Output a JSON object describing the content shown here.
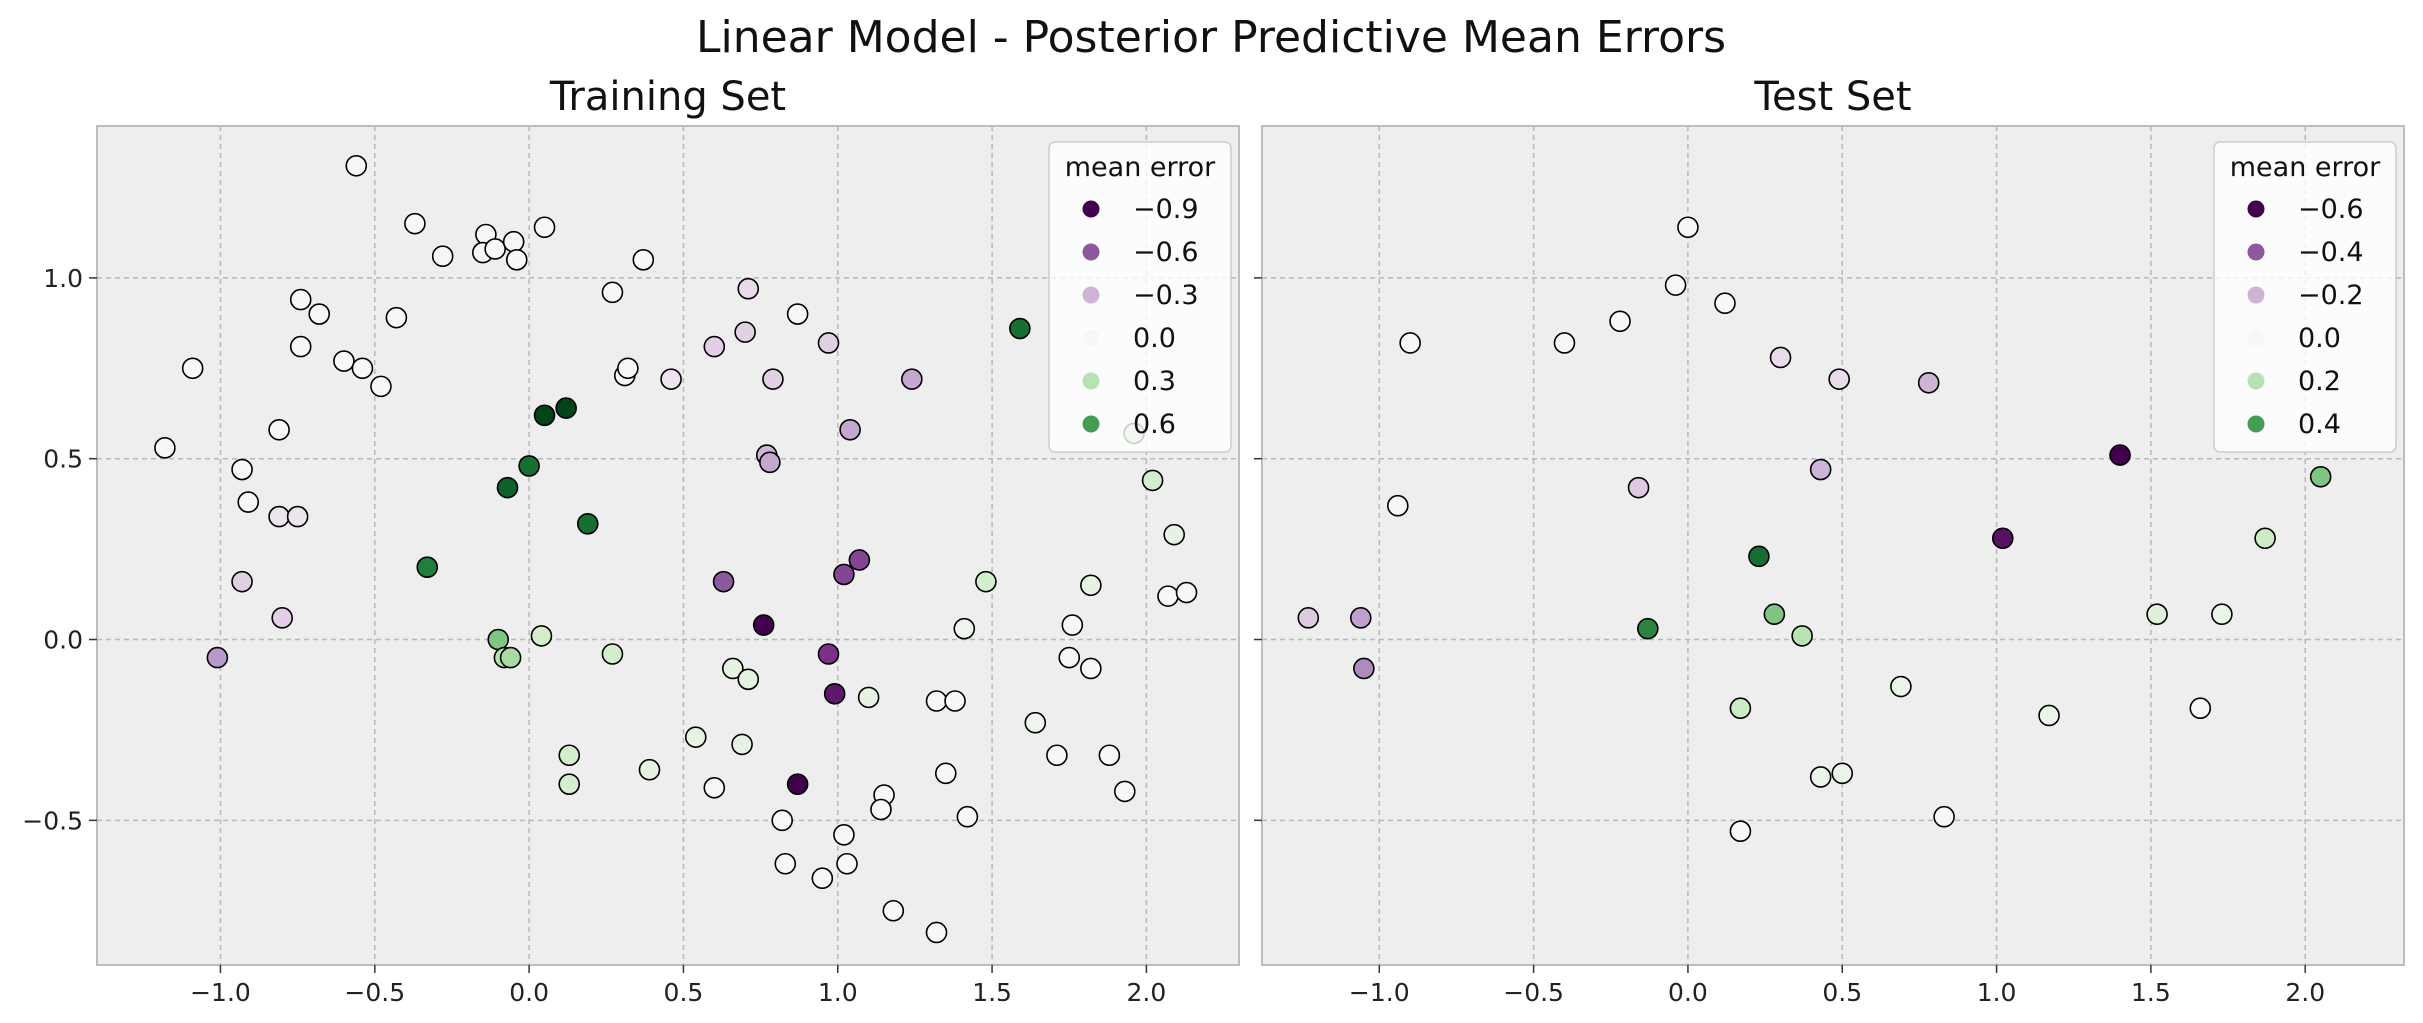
{
  "figure": {
    "title": "Linear Model - Posterior Predictive Mean Errors"
  },
  "colors": {
    "panel_bg": "#eeeeee",
    "grid": "#b8b8b8",
    "spine": "#bdbdbd",
    "marker_edge": "#000000",
    "colormap": "PRGn",
    "cmap_stops": [
      "#40004b",
      "#762a83",
      "#9970ab",
      "#c2a5cf",
      "#e7d4e8",
      "#f7f7f7",
      "#d9f0d3",
      "#a6dba0",
      "#5aae61",
      "#1b7837",
      "#00441b"
    ]
  },
  "chart_data": [
    {
      "type": "scatter",
      "title": "Training Set",
      "xlim": [
        -1.4,
        2.3
      ],
      "ylim": [
        -0.9,
        1.42
      ],
      "xticks": [
        -1.0,
        -0.5,
        0.0,
        0.5,
        1.0,
        1.5,
        2.0
      ],
      "yticks": [
        -0.5,
        0.0,
        0.5,
        1.0
      ],
      "xtick_labels": [
        "−1.0",
        "−0.5",
        "0.0",
        "0.5",
        "1.0",
        "1.5",
        "2.0"
      ],
      "ytick_labels": [
        "−0.5",
        "0.0",
        "0.5",
        "1.0"
      ],
      "grid": true,
      "color_range": [
        -0.9,
        0.9
      ],
      "legend": {
        "title": "mean error",
        "position": "top-right",
        "entries": [
          {
            "label": "−0.9",
            "value": -0.9
          },
          {
            "label": "−0.6",
            "value": -0.6
          },
          {
            "label": "−0.3",
            "value": -0.3
          },
          {
            "label": "0.0",
            "value": 0.0
          },
          {
            "label": "0.3",
            "value": 0.3
          },
          {
            "label": "0.6",
            "value": 0.6
          }
        ]
      },
      "points": [
        {
          "x": -0.56,
          "y": 1.31,
          "e": 0.0
        },
        {
          "x": -0.37,
          "y": 1.15,
          "e": 0.0
        },
        {
          "x": -0.28,
          "y": 1.06,
          "e": 0.0
        },
        {
          "x": -0.14,
          "y": 1.12,
          "e": 0.0
        },
        {
          "x": -0.15,
          "y": 1.07,
          "e": 0.0
        },
        {
          "x": -0.11,
          "y": 1.08,
          "e": 0.0
        },
        {
          "x": -0.05,
          "y": 1.1,
          "e": 0.0
        },
        {
          "x": -0.04,
          "y": 1.05,
          "e": 0.0
        },
        {
          "x": 0.05,
          "y": 1.14,
          "e": 0.0
        },
        {
          "x": 0.37,
          "y": 1.05,
          "e": 0.0
        },
        {
          "x": 0.27,
          "y": 0.96,
          "e": 0.0
        },
        {
          "x": 0.71,
          "y": 0.97,
          "e": -0.15
        },
        {
          "x": 0.87,
          "y": 0.9,
          "e": 0.0
        },
        {
          "x": -0.74,
          "y": 0.94,
          "e": 0.0
        },
        {
          "x": -0.68,
          "y": 0.9,
          "e": 0.0
        },
        {
          "x": -0.43,
          "y": 0.89,
          "e": 0.0
        },
        {
          "x": -1.09,
          "y": 0.75,
          "e": 0.0
        },
        {
          "x": -0.74,
          "y": 0.81,
          "e": 0.0
        },
        {
          "x": -0.6,
          "y": 0.77,
          "e": 0.0
        },
        {
          "x": -0.54,
          "y": 0.75,
          "e": 0.0
        },
        {
          "x": -0.48,
          "y": 0.7,
          "e": 0.0
        },
        {
          "x": 0.31,
          "y": 0.73,
          "e": 0.0
        },
        {
          "x": 0.32,
          "y": 0.75,
          "e": 0.0
        },
        {
          "x": 0.46,
          "y": 0.72,
          "e": -0.1
        },
        {
          "x": 0.6,
          "y": 0.81,
          "e": -0.2
        },
        {
          "x": 0.7,
          "y": 0.85,
          "e": -0.2
        },
        {
          "x": 0.79,
          "y": 0.72,
          "e": -0.2
        },
        {
          "x": 0.97,
          "y": 0.82,
          "e": -0.2
        },
        {
          "x": 1.24,
          "y": 0.72,
          "e": -0.35
        },
        {
          "x": 1.04,
          "y": 0.58,
          "e": -0.35
        },
        {
          "x": 1.59,
          "y": 0.86,
          "e": 0.75
        },
        {
          "x": -1.18,
          "y": 0.53,
          "e": 0.0
        },
        {
          "x": -0.81,
          "y": 0.58,
          "e": 0.0
        },
        {
          "x": -0.93,
          "y": 0.47,
          "e": 0.0
        },
        {
          "x": -0.91,
          "y": 0.38,
          "e": 0.0
        },
        {
          "x": -0.81,
          "y": 0.34,
          "e": -0.1
        },
        {
          "x": -0.75,
          "y": 0.34,
          "e": -0.1
        },
        {
          "x": 0.05,
          "y": 0.62,
          "e": 0.9
        },
        {
          "x": 0.12,
          "y": 0.64,
          "e": 0.9
        },
        {
          "x": 0.0,
          "y": 0.48,
          "e": 0.75
        },
        {
          "x": -0.07,
          "y": 0.42,
          "e": 0.8
        },
        {
          "x": 0.19,
          "y": 0.32,
          "e": 0.75
        },
        {
          "x": -0.33,
          "y": 0.2,
          "e": 0.7
        },
        {
          "x": 0.77,
          "y": 0.51,
          "e": -0.3
        },
        {
          "x": 0.78,
          "y": 0.49,
          "e": -0.35
        },
        {
          "x": 1.96,
          "y": 0.57,
          "e": 0.3
        },
        {
          "x": 2.02,
          "y": 0.44,
          "e": 0.2
        },
        {
          "x": 2.09,
          "y": 0.29,
          "e": 0.1
        },
        {
          "x": -0.93,
          "y": 0.16,
          "e": -0.2
        },
        {
          "x": -0.8,
          "y": 0.06,
          "e": -0.2
        },
        {
          "x": -1.01,
          "y": -0.05,
          "e": -0.4
        },
        {
          "x": 0.63,
          "y": 0.16,
          "e": -0.6
        },
        {
          "x": 1.07,
          "y": 0.22,
          "e": -0.65
        },
        {
          "x": 1.02,
          "y": 0.18,
          "e": -0.65
        },
        {
          "x": 0.76,
          "y": 0.04,
          "e": -0.9
        },
        {
          "x": 0.97,
          "y": -0.04,
          "e": -0.7
        },
        {
          "x": 0.99,
          "y": -0.15,
          "e": -0.8
        },
        {
          "x": 0.87,
          "y": -0.4,
          "e": -0.9
        },
        {
          "x": -0.1,
          "y": 0.0,
          "e": 0.45
        },
        {
          "x": -0.08,
          "y": -0.05,
          "e": 0.3
        },
        {
          "x": -0.06,
          "y": -0.05,
          "e": 0.35
        },
        {
          "x": 0.04,
          "y": 0.01,
          "e": 0.2
        },
        {
          "x": 0.27,
          "y": -0.04,
          "e": 0.2
        },
        {
          "x": 0.13,
          "y": -0.32,
          "e": 0.2
        },
        {
          "x": 0.13,
          "y": -0.4,
          "e": 0.2
        },
        {
          "x": 0.39,
          "y": -0.36,
          "e": 0.1
        },
        {
          "x": 0.54,
          "y": -0.27,
          "e": 0.1
        },
        {
          "x": 0.6,
          "y": -0.41,
          "e": 0.0
        },
        {
          "x": 0.66,
          "y": -0.08,
          "e": 0.1
        },
        {
          "x": 0.71,
          "y": -0.11,
          "e": 0.1
        },
        {
          "x": 0.69,
          "y": -0.29,
          "e": 0.1
        },
        {
          "x": 1.1,
          "y": -0.16,
          "e": 0.1
        },
        {
          "x": 1.32,
          "y": -0.17,
          "e": 0.0
        },
        {
          "x": 1.38,
          "y": -0.17,
          "e": 0.0
        },
        {
          "x": 1.48,
          "y": 0.16,
          "e": 0.2
        },
        {
          "x": 1.41,
          "y": 0.03,
          "e": 0.05
        },
        {
          "x": 1.64,
          "y": -0.23,
          "e": 0.05
        },
        {
          "x": 1.71,
          "y": -0.32,
          "e": 0.0
        },
        {
          "x": 1.76,
          "y": 0.04,
          "e": 0.0
        },
        {
          "x": 1.75,
          "y": -0.05,
          "e": 0.0
        },
        {
          "x": 1.82,
          "y": 0.15,
          "e": 0.1
        },
        {
          "x": 1.82,
          "y": -0.08,
          "e": 0.0
        },
        {
          "x": 1.88,
          "y": -0.32,
          "e": 0.0
        },
        {
          "x": 1.93,
          "y": -0.42,
          "e": 0.0
        },
        {
          "x": 2.07,
          "y": 0.12,
          "e": 0.0
        },
        {
          "x": 2.13,
          "y": 0.13,
          "e": 0.0
        },
        {
          "x": 1.35,
          "y": -0.37,
          "e": 0.0
        },
        {
          "x": 1.42,
          "y": -0.49,
          "e": 0.0
        },
        {
          "x": 1.15,
          "y": -0.43,
          "e": 0.0
        },
        {
          "x": 1.14,
          "y": -0.47,
          "e": 0.0
        },
        {
          "x": 0.82,
          "y": -0.5,
          "e": 0.0
        },
        {
          "x": 1.02,
          "y": -0.54,
          "e": 0.0
        },
        {
          "x": 1.03,
          "y": -0.62,
          "e": 0.0
        },
        {
          "x": 0.83,
          "y": -0.62,
          "e": 0.0
        },
        {
          "x": 0.95,
          "y": -0.66,
          "e": 0.0
        },
        {
          "x": 1.18,
          "y": -0.75,
          "e": 0.0
        },
        {
          "x": 1.32,
          "y": -0.81,
          "e": 0.0
        }
      ]
    },
    {
      "type": "scatter",
      "title": "Test Set",
      "xlim": [
        -1.38,
        2.32
      ],
      "ylim": [
        -0.9,
        1.42
      ],
      "xticks": [
        -1.0,
        -0.5,
        0.0,
        0.5,
        1.0,
        1.5,
        2.0
      ],
      "yticks": [
        -0.5,
        0.0,
        0.5,
        1.0
      ],
      "xtick_labels": [
        "−1.0",
        "−0.5",
        "0.0",
        "0.5",
        "1.0",
        "1.5",
        "2.0"
      ],
      "ytick_labels": [],
      "grid": true,
      "color_range": [
        -0.6,
        0.6
      ],
      "legend": {
        "title": "mean error",
        "position": "top-right",
        "entries": [
          {
            "label": "−0.6",
            "value": -0.6
          },
          {
            "label": "−0.4",
            "value": -0.4
          },
          {
            "label": "−0.2",
            "value": -0.2
          },
          {
            "label": "0.0",
            "value": 0.0
          },
          {
            "label": "0.2",
            "value": 0.2
          },
          {
            "label": "0.4",
            "value": 0.4
          }
        ]
      },
      "points": [
        {
          "x": 0.0,
          "y": 1.14,
          "e": 0.0
        },
        {
          "x": -0.04,
          "y": 0.98,
          "e": 0.0
        },
        {
          "x": 0.12,
          "y": 0.93,
          "e": 0.0
        },
        {
          "x": -0.22,
          "y": 0.88,
          "e": 0.0
        },
        {
          "x": -0.4,
          "y": 0.82,
          "e": 0.0
        },
        {
          "x": -0.9,
          "y": 0.82,
          "e": 0.0
        },
        {
          "x": 0.3,
          "y": 0.78,
          "e": -0.1
        },
        {
          "x": 0.49,
          "y": 0.72,
          "e": -0.1
        },
        {
          "x": 0.78,
          "y": 0.71,
          "e": -0.2
        },
        {
          "x": -0.94,
          "y": 0.37,
          "e": 0.0
        },
        {
          "x": -0.16,
          "y": 0.42,
          "e": -0.15
        },
        {
          "x": 0.43,
          "y": 0.47,
          "e": -0.2
        },
        {
          "x": 1.4,
          "y": 0.51,
          "e": -0.6
        },
        {
          "x": 1.02,
          "y": 0.28,
          "e": -0.55
        },
        {
          "x": 2.05,
          "y": 0.45,
          "e": 0.3
        },
        {
          "x": 1.87,
          "y": 0.28,
          "e": 0.15
        },
        {
          "x": -1.23,
          "y": 0.06,
          "e": -0.15
        },
        {
          "x": -1.06,
          "y": 0.06,
          "e": -0.25
        },
        {
          "x": -1.05,
          "y": -0.08,
          "e": -0.3
        },
        {
          "x": 0.23,
          "y": 0.23,
          "e": 0.5
        },
        {
          "x": -0.13,
          "y": 0.03,
          "e": 0.45
        },
        {
          "x": 0.28,
          "y": 0.07,
          "e": 0.3
        },
        {
          "x": 0.37,
          "y": 0.01,
          "e": 0.2
        },
        {
          "x": 1.52,
          "y": 0.07,
          "e": 0.1
        },
        {
          "x": 1.73,
          "y": 0.07,
          "e": 0.05
        },
        {
          "x": 0.17,
          "y": -0.19,
          "e": 0.15
        },
        {
          "x": 0.69,
          "y": -0.13,
          "e": 0.05
        },
        {
          "x": 1.17,
          "y": -0.21,
          "e": 0.05
        },
        {
          "x": 1.66,
          "y": -0.19,
          "e": 0.0
        },
        {
          "x": 0.43,
          "y": -0.38,
          "e": 0.05
        },
        {
          "x": 0.5,
          "y": -0.37,
          "e": 0.05
        },
        {
          "x": 0.83,
          "y": -0.49,
          "e": 0.0
        },
        {
          "x": 0.17,
          "y": -0.53,
          "e": 0.0
        }
      ]
    }
  ]
}
